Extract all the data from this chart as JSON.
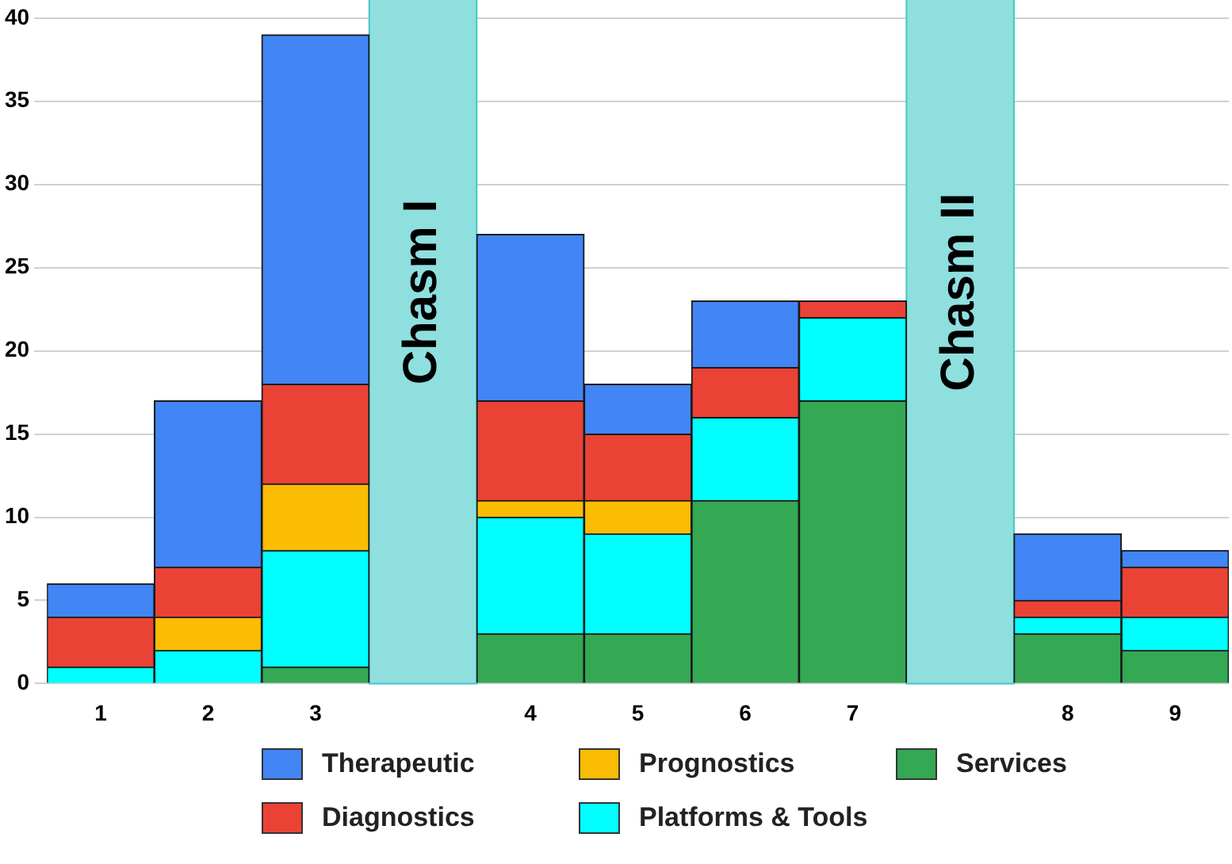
{
  "chart_data": {
    "type": "bar",
    "stacked": true,
    "categories": [
      "1",
      "2",
      "3",
      null,
      "4",
      "5",
      "6",
      "7",
      null,
      "8",
      "9"
    ],
    "series": [
      {
        "name": "Services",
        "color": "#34a853",
        "values": [
          0,
          0,
          1,
          null,
          3,
          3,
          11,
          17,
          null,
          3,
          2
        ]
      },
      {
        "name": "Platforms & Tools",
        "color": "#00ffff",
        "values": [
          1,
          2,
          7,
          null,
          7,
          6,
          5,
          5,
          null,
          1,
          2
        ]
      },
      {
        "name": "Prognostics",
        "color": "#fbbc04",
        "values": [
          0,
          2,
          4,
          null,
          1,
          2,
          0,
          0,
          null,
          0,
          0
        ]
      },
      {
        "name": "Diagnostics",
        "color": "#ea4335",
        "values": [
          3,
          3,
          6,
          null,
          6,
          4,
          3,
          1,
          null,
          1,
          3
        ]
      },
      {
        "name": "Therapeutic",
        "color": "#4285f4",
        "values": [
          2,
          10,
          21,
          null,
          10,
          3,
          4,
          0,
          null,
          4,
          1
        ]
      }
    ],
    "bands": [
      {
        "axis": "x",
        "from": "3",
        "to": "4",
        "label": "Chasm I",
        "color": "#8fdfdf"
      },
      {
        "axis": "x",
        "from": "7",
        "to": "8",
        "label": "Chasm II",
        "color": "#8fdfdf"
      }
    ],
    "ylim": [
      0,
      40
    ],
    "yticks": [
      0,
      5,
      10,
      15,
      20,
      25,
      30,
      35,
      40
    ],
    "grid": "y",
    "legend": "bottom"
  }
}
